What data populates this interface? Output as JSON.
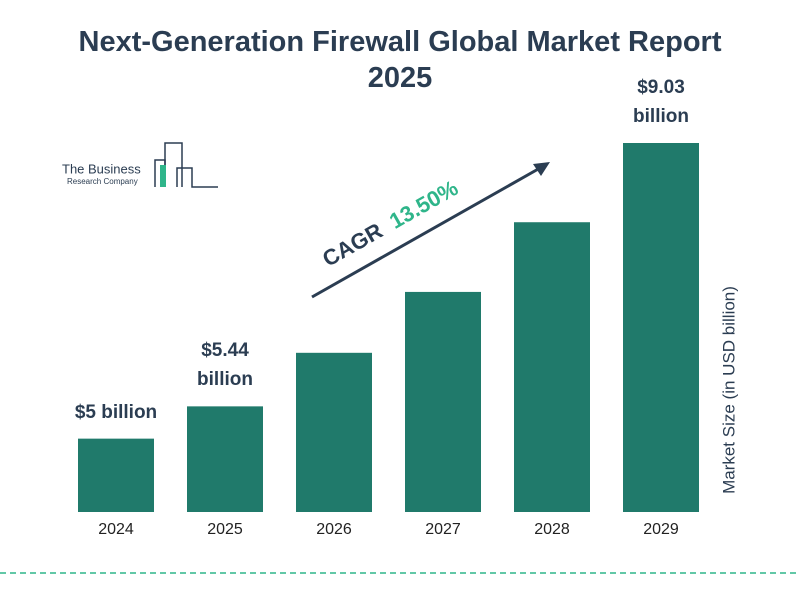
{
  "chart_data": {
    "type": "bar",
    "title": "Next-Generation Firewall Global Market Report 2025",
    "y_label": "Market Size (in USD billion)",
    "categories": [
      "2024",
      "2025",
      "2026",
      "2027",
      "2028",
      "2029"
    ],
    "values": [
      5,
      5.44,
      6.17,
      7.0,
      7.95,
      9.03
    ],
    "value_labels": [
      "$5 billion",
      "$5.44 billion",
      null,
      null,
      null,
      "$9.03 billion"
    ],
    "color": "#207a6b",
    "annotation": {
      "label": "CAGR",
      "value": "13.50%"
    }
  },
  "logo": {
    "line1": "The Business",
    "line2": "Research Company"
  }
}
